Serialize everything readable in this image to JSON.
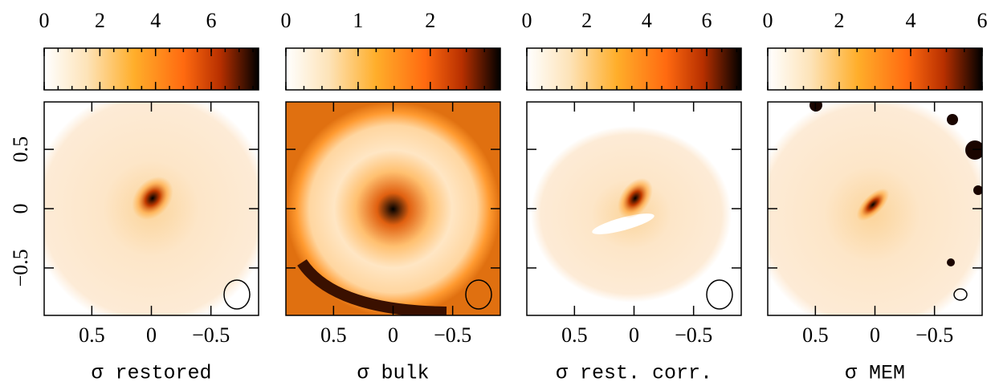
{
  "chart_data": [
    {
      "type": "image",
      "xlabel": "σ restored",
      "clim": [
        0,
        7.7
      ],
      "cticks": [
        0,
        2,
        4,
        6
      ],
      "xlim": [
        0.9,
        -0.9
      ],
      "xticks": [
        0.5,
        0,
        {
          "value": -0.5,
          "label": "−0.5"
        }
      ],
      "ylim": [
        -0.9,
        0.9
      ],
      "yticks": [
        {
          "value": -0.5,
          "label": "−0.5"
        },
        0,
        0.5
      ]
    },
    {
      "type": "image",
      "xlabel": "σ bulk",
      "clim": [
        0,
        2.97
      ],
      "cticks": [
        0,
        1,
        2
      ],
      "xlim": [
        0.9,
        -0.9
      ],
      "xticks": [
        0.5,
        0,
        {
          "value": -0.5,
          "label": "−0.5"
        }
      ],
      "ylim": [
        -0.9,
        0.9
      ],
      "yticks": [
        -0.5,
        0,
        0.5
      ]
    },
    {
      "type": "image",
      "xlabel": "σ rest. corr.",
      "clim": [
        0,
        7.15
      ],
      "cticks": [
        0,
        2,
        4,
        6
      ],
      "xlim": [
        0.9,
        -0.9
      ],
      "xticks": [
        0.5,
        0,
        {
          "value": -0.5,
          "label": "−0.5"
        }
      ],
      "ylim": [
        -0.9,
        0.9
      ],
      "yticks": [
        -0.5,
        0,
        0.5
      ]
    },
    {
      "type": "image",
      "xlabel": "σ MEM",
      "clim": [
        0,
        6
      ],
      "cticks": [
        0,
        2,
        4,
        6
      ],
      "xlim": [
        0.9,
        -0.9
      ],
      "xticks": [
        0.5,
        0,
        {
          "value": -0.5,
          "label": "−0.5"
        }
      ],
      "ylim": [
        -0.9,
        0.9
      ],
      "yticks": [
        -0.5,
        0,
        0.5
      ]
    }
  ]
}
